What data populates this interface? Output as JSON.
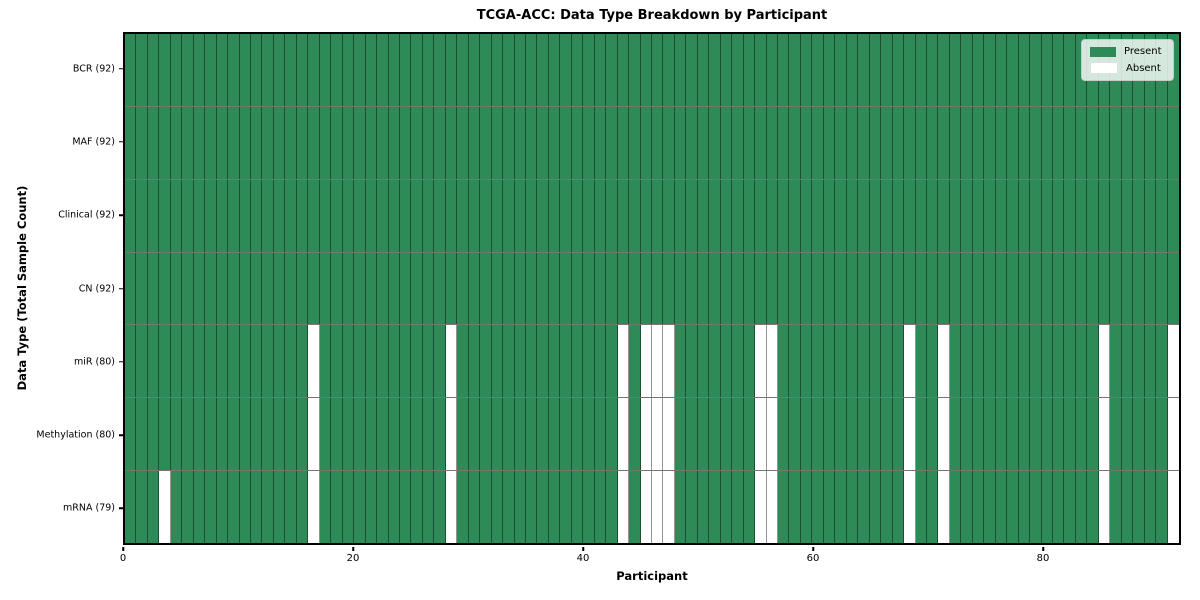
{
  "chart_data": {
    "type": "heatmap",
    "title": "TCGA-ACC: Data Type Breakdown by Participant",
    "xlabel": "Participant",
    "ylabel": "Data Type (Total Sample Count)",
    "n_participants": 92,
    "x_ticks": [
      0,
      20,
      40,
      60,
      80
    ],
    "grid": "on",
    "legend_position": "upper right",
    "rows": [
      {
        "label": "BCR (92)",
        "data_type": "BCR",
        "present_count": 92,
        "absent_participants": []
      },
      {
        "label": "MAF (92)",
        "data_type": "MAF",
        "present_count": 92,
        "absent_participants": []
      },
      {
        "label": "Clinical (92)",
        "data_type": "Clinical",
        "present_count": 92,
        "absent_participants": []
      },
      {
        "label": "CN (92)",
        "data_type": "CN",
        "present_count": 92,
        "absent_participants": []
      },
      {
        "label": "miR (80)",
        "data_type": "miR",
        "present_count": 80,
        "absent_participants": [
          16,
          28,
          43,
          45,
          46,
          47,
          55,
          56,
          68,
          71,
          85,
          91
        ]
      },
      {
        "label": "Methylation (80)",
        "data_type": "Methylation",
        "present_count": 80,
        "absent_participants": [
          16,
          28,
          43,
          45,
          46,
          47,
          55,
          56,
          68,
          71,
          85,
          91
        ]
      },
      {
        "label": "mRNA (79)",
        "data_type": "mRNA",
        "present_count": 79,
        "absent_participants": [
          3,
          16,
          28,
          43,
          45,
          46,
          47,
          55,
          56,
          68,
          71,
          85,
          91
        ]
      }
    ],
    "legend": [
      {
        "label": "Present",
        "color": "#2e8b57"
      },
      {
        "label": "Absent",
        "color": "#ffffff"
      }
    ],
    "colors": {
      "present": "#2e8b57",
      "absent": "#ffffff"
    }
  }
}
